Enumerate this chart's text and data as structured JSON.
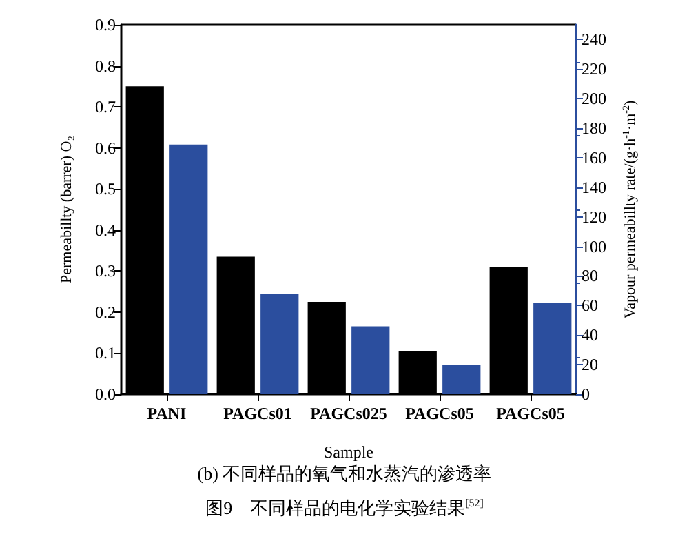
{
  "chart_data": {
    "type": "bar",
    "title": "(b) 不同样品的氧气和水蒸汽的渗透率",
    "subtitle": "图9　不同样品的电化学实验结果$^{[52]}$",
    "xlabel": "Sample",
    "ylabel": "Permeabillty (barrer) O₂",
    "y2label": "Vapour permeabillty rate/(g·h$^{-1}$·m$^{-2}$)",
    "categories": [
      "PANI",
      "PAGCs01",
      "PAGCs025",
      "PAGCs05",
      "PAGCs05"
    ],
    "series": [
      {
        "color": "#000000",
        "values": [
          0.75,
          0.335,
          0.225,
          0.105,
          0.31
        ]
      },
      {
        "color": "#2b4e9e",
        "axis": "y2",
        "values": [
          169,
          68,
          46,
          20,
          62
        ]
      }
    ],
    "ylim": [
      0,
      0.9
    ],
    "yticks": [
      {
        "value": 0,
        "label": "0.0"
      },
      0.1,
      0.2,
      0.3,
      0.4,
      0.5,
      0.6,
      0.7,
      0.8,
      0.9
    ],
    "y2lim": [
      0,
      250
    ],
    "y2ticks": [
      0,
      20,
      40,
      60,
      80,
      100,
      120,
      140,
      160,
      180,
      200,
      220,
      240
    ]
  }
}
